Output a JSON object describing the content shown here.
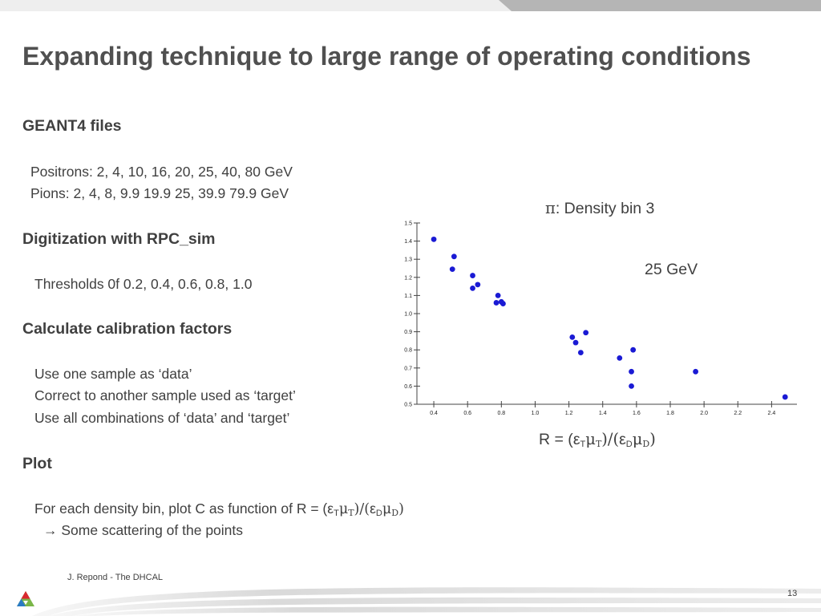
{
  "slide": {
    "title": "Expanding technique to large range of operating conditions",
    "sections": [
      {
        "heading": "GEANT4 files",
        "lines": [
          "Positrons: 2, 4, 10, 16, 20, 25, 40, 80 GeV",
          "Pions: 2, 4, 8, 9.9 19.9 25, 39.9 79.9 GeV"
        ]
      },
      {
        "heading": "Digitization with RPC_sim",
        "lines": [
          "Thresholds 0f 0.2, 0.4, 0.6, 0.8, 1.0"
        ]
      },
      {
        "heading": "Calculate calibration factors",
        "lines": [
          "Use one sample as ‘data’",
          "Correct to another sample used as ‘target’",
          "Use all combinations of ‘data’ and ‘target’"
        ]
      },
      {
        "heading": "Plot",
        "lines": [
          "→ Some scattering of the points"
        ],
        "formula_line_prefix": "For each density bin, plot C as function of R = (",
        "formula_line_suffix": ")"
      }
    ],
    "ratio": {
      "prefix": "R = (",
      "eps": "ε",
      "mu": "μ",
      "sub_t": "T",
      "sub_d": "D",
      "slash": ")/(",
      "suffix": ")"
    },
    "chart_caption": {
      "pi_symbol": "π",
      "text": ": Density bin 3",
      "energy": "25 GeV"
    },
    "footer": {
      "author": "J. Repond - The DHCAL",
      "page_number": "13"
    }
  },
  "chart_data": {
    "type": "scatter",
    "title": "",
    "xlabel": "R = (εTμT)/(εDμD)",
    "ylabel": "",
    "xlim": [
      0.3,
      2.55
    ],
    "ylim": [
      0.5,
      1.5
    ],
    "x_ticks": [
      0.4,
      0.6,
      0.8,
      1.0,
      1.2,
      1.4,
      1.6,
      1.8,
      2.0,
      2.2,
      2.4
    ],
    "x_tick_labels": [
      "0.4",
      "0.6",
      "0.8",
      "1.0",
      "1.2",
      "1.4",
      "1.6",
      "1.8",
      "2.0",
      "2.2",
      "2.4"
    ],
    "y_ticks": [
      0.5,
      0.6,
      0.7,
      0.8,
      0.9,
      1.0,
      1.1,
      1.2,
      1.3,
      1.4,
      1.5
    ],
    "y_tick_labels": [
      "0.5",
      "0.6",
      "0.7",
      "0.8",
      "0.9",
      "1.0",
      "1.1",
      "1.2",
      "1.3",
      "1.4",
      "1.5"
    ],
    "grid": false,
    "marker_color": "#1a1ad4",
    "points": [
      {
        "x": 0.4,
        "y": 1.41
      },
      {
        "x": 0.52,
        "y": 1.315
      },
      {
        "x": 0.51,
        "y": 1.245
      },
      {
        "x": 0.63,
        "y": 1.21
      },
      {
        "x": 0.66,
        "y": 1.16
      },
      {
        "x": 0.63,
        "y": 1.14
      },
      {
        "x": 0.78,
        "y": 1.1
      },
      {
        "x": 0.77,
        "y": 1.06
      },
      {
        "x": 0.8,
        "y": 1.065
      },
      {
        "x": 0.81,
        "y": 1.055
      },
      {
        "x": 1.22,
        "y": 0.87
      },
      {
        "x": 1.3,
        "y": 0.895
      },
      {
        "x": 1.24,
        "y": 0.84
      },
      {
        "x": 1.27,
        "y": 0.785
      },
      {
        "x": 1.5,
        "y": 0.755
      },
      {
        "x": 1.58,
        "y": 0.8
      },
      {
        "x": 1.57,
        "y": 0.68
      },
      {
        "x": 1.57,
        "y": 0.6
      },
      {
        "x": 1.95,
        "y": 0.68
      },
      {
        "x": 2.48,
        "y": 0.54
      }
    ]
  },
  "colors": {
    "title": "#505050",
    "text": "#404040",
    "marker": "#1a1ad4",
    "topbar_dark": "#b5b5b5",
    "topbar_light": "#eeeeee",
    "logo_red": "#d9282f",
    "logo_green": "#7ab648",
    "logo_blue": "#2a7bc4"
  }
}
